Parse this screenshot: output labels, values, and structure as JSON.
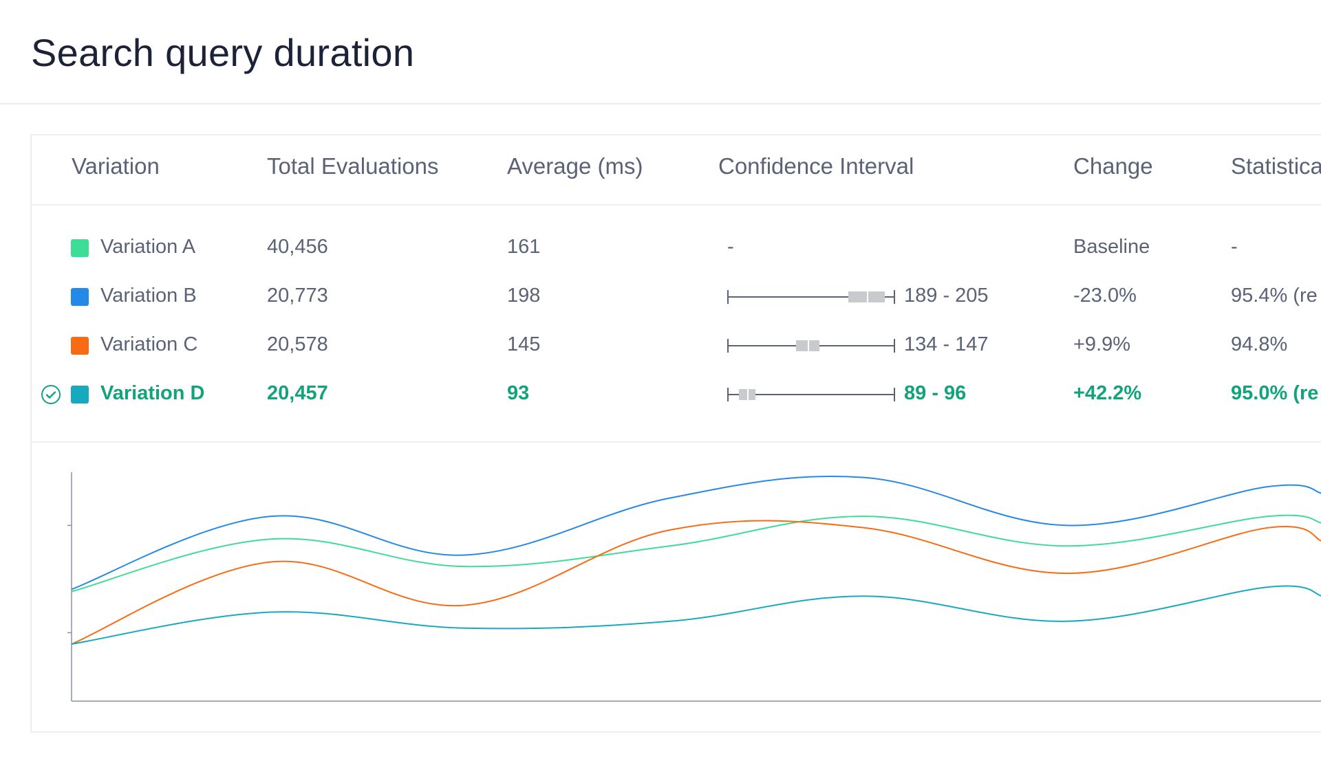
{
  "title": "Search query duration",
  "table": {
    "headers": [
      "Variation",
      "Total Evaluations",
      "Average (ms)",
      "Confidence Interval",
      "Change",
      "Statistica"
    ],
    "rows": [
      {
        "name": "Variation A",
        "color": "#3ddc97",
        "total": "40,456",
        "average": "161",
        "ci": "-",
        "ci_box": null,
        "change": "Baseline",
        "stat": "-",
        "winner": false
      },
      {
        "name": "Variation B",
        "color": "#2589e8",
        "total": "20,773",
        "average": "198",
        "ci": "189 - 205",
        "ci_box": [
          0.72,
          0.94
        ],
        "change": "-23.0%",
        "stat": " 95.4% (re",
        "winner": false
      },
      {
        "name": "Variation C",
        "color": "#f96b13",
        "total": "20,578",
        "average": "145",
        "ci": "134 - 147",
        "ci_box": [
          0.41,
          0.55
        ],
        "change": "+9.9%",
        "stat": "94.8%",
        "winner": false
      },
      {
        "name": "Variation D",
        "color": "#16a9c0",
        "total": "20,457",
        "average": "93",
        "ci": "89 - 96",
        "ci_box": [
          0.07,
          0.17
        ],
        "change": "+42.2%",
        "stat": "95.0% (re",
        "winner": true
      }
    ]
  },
  "chart_data": {
    "type": "line",
    "title": "",
    "xlabel": "",
    "ylabel": "",
    "xlim": [
      0,
      6.27
    ],
    "ylim": [
      0,
      100
    ],
    "yticks": [
      30,
      77
    ],
    "grid": false,
    "x": [
      0,
      1,
      1.97,
      3.0,
      3.97,
      4.99,
      6.0,
      6.27
    ],
    "series": [
      {
        "name": "Variation A",
        "color": "#3ddc97",
        "values": [
          48,
          71,
          59,
          68,
          81,
          68,
          81,
          78
        ]
      },
      {
        "name": "Variation B",
        "color": "#2589e8",
        "values": [
          49,
          81,
          64,
          89,
          98,
          77,
          94,
          91
        ]
      },
      {
        "name": "Variation C",
        "color": "#f96b13",
        "values": [
          25,
          61,
          42,
          75,
          76,
          56,
          76,
          70
        ]
      },
      {
        "name": "Variation D",
        "color": "#16a9c0",
        "values": [
          25,
          39,
          32,
          35,
          46,
          35,
          50,
          46
        ]
      }
    ]
  }
}
